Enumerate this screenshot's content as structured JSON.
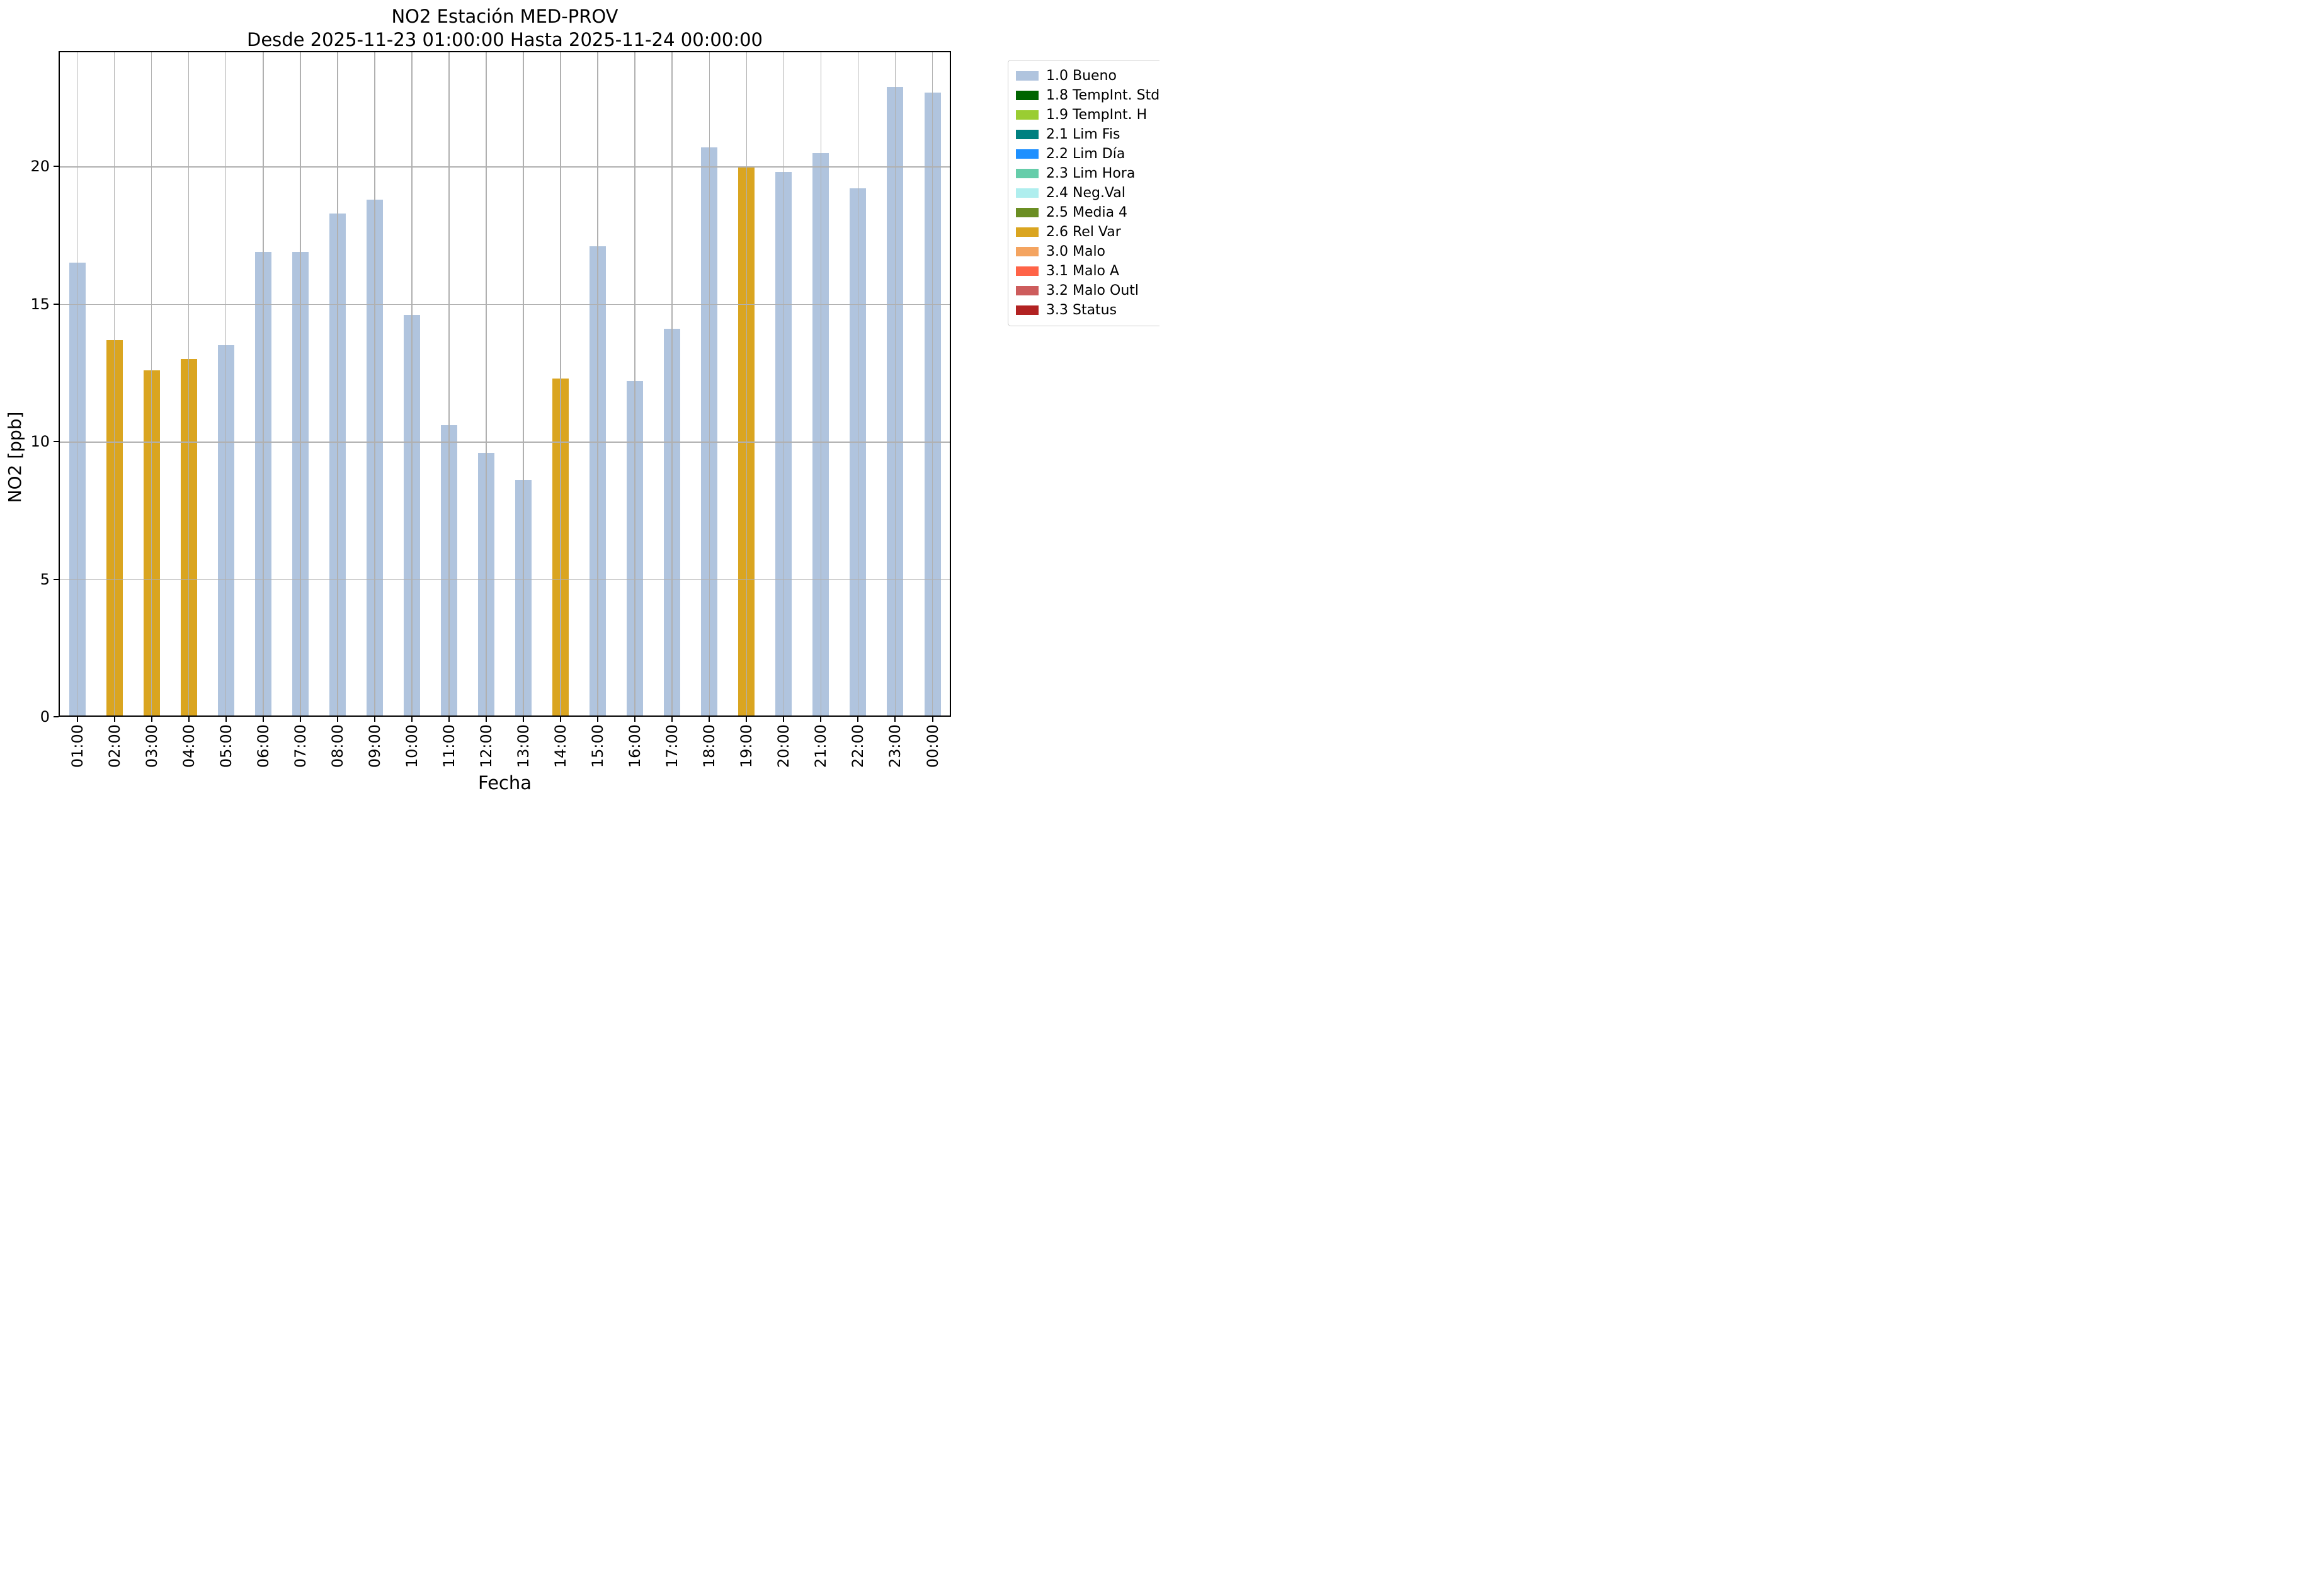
{
  "chart_data": {
    "type": "bar",
    "title": "NO2 Estación MED-PROV",
    "subtitle": "Desde 2025-11-23 01:00:00 Hasta 2025-11-24 00:00:00",
    "xlabel": "Fecha",
    "ylabel": "NO2 [ppb]",
    "ylim": [
      0,
      24.2
    ],
    "yticks": [
      0,
      5,
      10,
      15,
      20
    ],
    "grid": true,
    "legend_position": "outside-right-top",
    "categories": [
      "01:00",
      "02:00",
      "03:00",
      "04:00",
      "05:00",
      "06:00",
      "07:00",
      "08:00",
      "09:00",
      "10:00",
      "11:00",
      "12:00",
      "13:00",
      "14:00",
      "15:00",
      "16:00",
      "17:00",
      "18:00",
      "19:00",
      "20:00",
      "21:00",
      "22:00",
      "23:00",
      "00:00"
    ],
    "values": [
      16.5,
      13.7,
      12.6,
      13.0,
      13.5,
      16.9,
      16.9,
      18.3,
      18.8,
      14.6,
      10.6,
      9.6,
      8.6,
      12.3,
      17.1,
      12.2,
      14.1,
      20.7,
      20.0,
      19.8,
      20.5,
      19.2,
      22.9,
      22.7
    ],
    "bar_flags": [
      "1.0 Bueno",
      "2.6 Rel Var",
      "2.6 Rel Var",
      "2.6 Rel Var",
      "1.0 Bueno",
      "1.0 Bueno",
      "1.0 Bueno",
      "1.0 Bueno",
      "1.0 Bueno",
      "1.0 Bueno",
      "1.0 Bueno",
      "1.0 Bueno",
      "1.0 Bueno",
      "2.6 Rel Var",
      "1.0 Bueno",
      "1.0 Bueno",
      "1.0 Bueno",
      "1.0 Bueno",
      "2.6 Rel Var",
      "1.0 Bueno",
      "1.0 Bueno",
      "1.0 Bueno",
      "1.0 Bueno",
      "1.0 Bueno"
    ],
    "flag_colors": {
      "1.0 Bueno": "#b0c4de",
      "2.6 Rel Var": "#daa520"
    },
    "legend": [
      {
        "label": "1.0 Bueno",
        "color": "#b0c4de"
      },
      {
        "label": "1.8 TempInt. Std",
        "color": "#006400"
      },
      {
        "label": "1.9 TempInt. H",
        "color": "#9acd32"
      },
      {
        "label": "2.1 Lim Fis",
        "color": "#008080"
      },
      {
        "label": "2.2 Lim Día",
        "color": "#1e90ff"
      },
      {
        "label": "2.3 Lim Hora",
        "color": "#66cdaa"
      },
      {
        "label": "2.4 Neg.Val",
        "color": "#afeeee"
      },
      {
        "label": "2.5 Media 4",
        "color": "#6b8e23"
      },
      {
        "label": "2.6 Rel Var",
        "color": "#daa520"
      },
      {
        "label": "3.0 Malo",
        "color": "#f4a460"
      },
      {
        "label": "3.1 Malo A",
        "color": "#ff6347"
      },
      {
        "label": "3.2 Malo Outl",
        "color": "#cd5c5c"
      },
      {
        "label": "3.3 Status",
        "color": "#b22222"
      }
    ]
  }
}
